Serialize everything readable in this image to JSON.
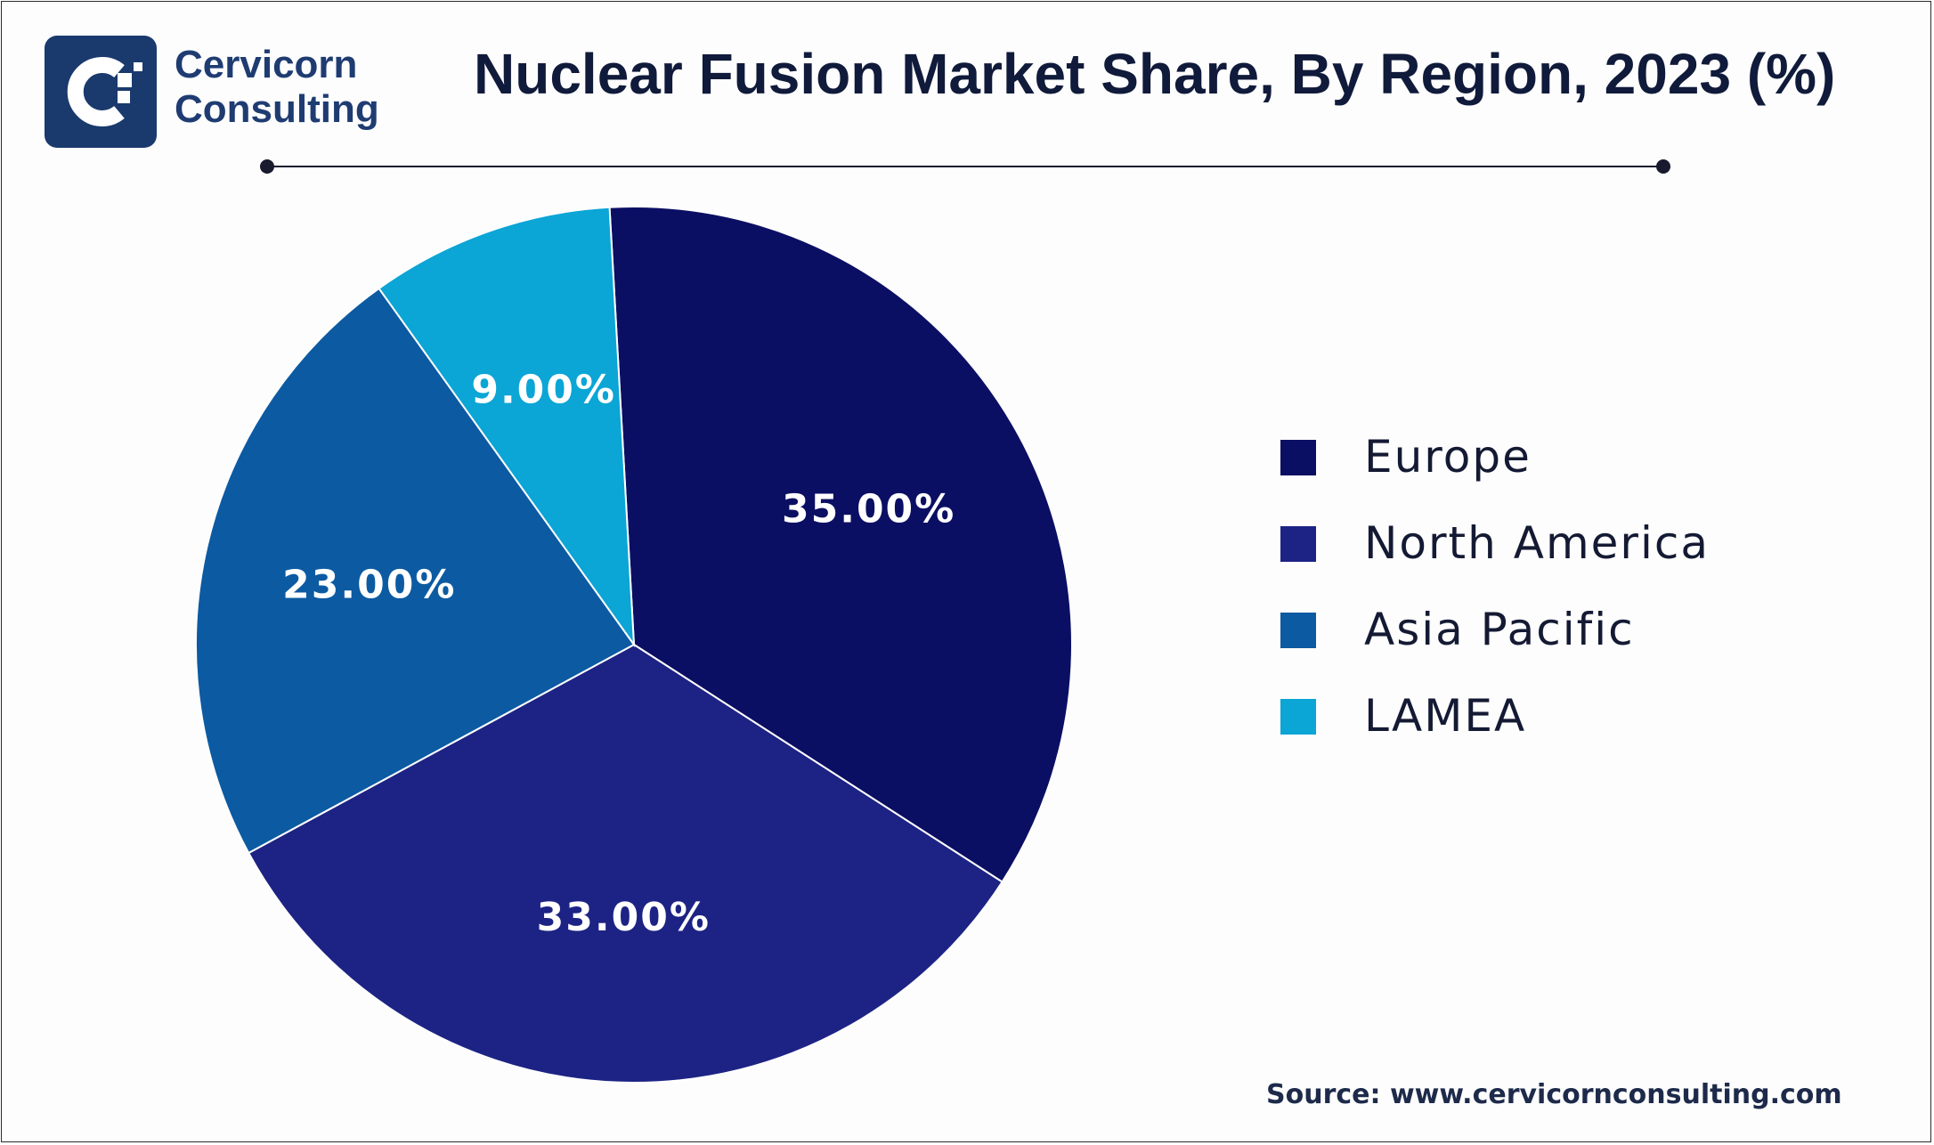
{
  "brand": {
    "line1": "Cervicorn",
    "line2": "Consulting"
  },
  "source_text": "Source: www.cervicornconsulting.com",
  "chart_data": {
    "type": "pie",
    "title": "Nuclear Fusion Market Share, By Region, 2023 (%)",
    "categories": [
      "Europe",
      "North America",
      "Asia Pacific",
      "LAMEA"
    ],
    "values": [
      35.0,
      33.0,
      23.0,
      9.0
    ],
    "value_labels": [
      "35.00%",
      "33.00%",
      "23.00%",
      "9.00%"
    ],
    "colors": [
      "#0b0f63",
      "#1d2384",
      "#0c5aa2",
      "#0ba5d6"
    ],
    "legend_position": "right"
  }
}
